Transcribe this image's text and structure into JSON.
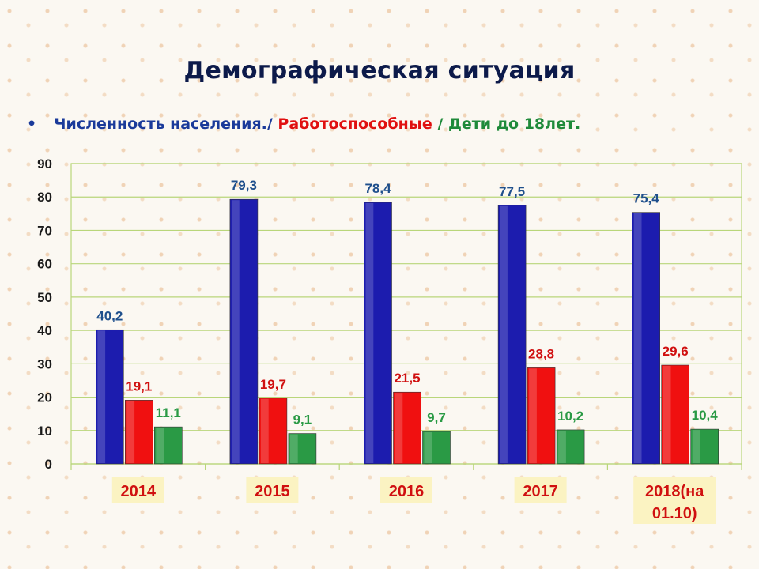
{
  "title": "Демографическая ситуация",
  "subtitle": {
    "bullet": "•",
    "population": "Численность населения.",
    "sep1": "/ ",
    "working": "Работоспособные",
    "sep2": " / ",
    "children": "Дети до 18лет."
  },
  "chart_data": {
    "type": "bar",
    "categories": [
      "2014",
      "2015",
      "2016",
      "2017",
      "2018(на\n01.10)"
    ],
    "series": [
      {
        "name": "Численность населения.",
        "values": [
          40.2,
          79.3,
          78.4,
          77.5,
          75.4
        ],
        "labels": [
          "40,2",
          "79,3",
          "78,4",
          "77,5",
          "75,4"
        ]
      },
      {
        "name": "Работоспособные",
        "values": [
          19.1,
          19.7,
          21.5,
          28.8,
          29.6
        ],
        "labels": [
          "19,1",
          "19,7",
          "21,5",
          "28,8",
          "29,6"
        ]
      },
      {
        "name": "Дети до 18лет.",
        "values": [
          11.1,
          9.1,
          9.7,
          10.2,
          10.4
        ],
        "labels": [
          "11,1",
          "9,1",
          "9,7",
          "10,2",
          "10,4"
        ]
      }
    ],
    "ylim": [
      0,
      90
    ],
    "yticks": [
      "0",
      "10",
      "20",
      "30",
      "40",
      "50",
      "60",
      "70",
      "80",
      "90"
    ],
    "grid": true
  },
  "colors": {
    "population": "#1c1cae",
    "working": "#f01010",
    "children": "#2a9a45",
    "population_label": "#1e4f8c",
    "working_label": "#d01010",
    "children_label": "#2a9a45",
    "grid": "#b9d67a",
    "axis_text": "#1a1a1a",
    "category_text": "#d01010",
    "category_bg": "#fbf3c2"
  }
}
